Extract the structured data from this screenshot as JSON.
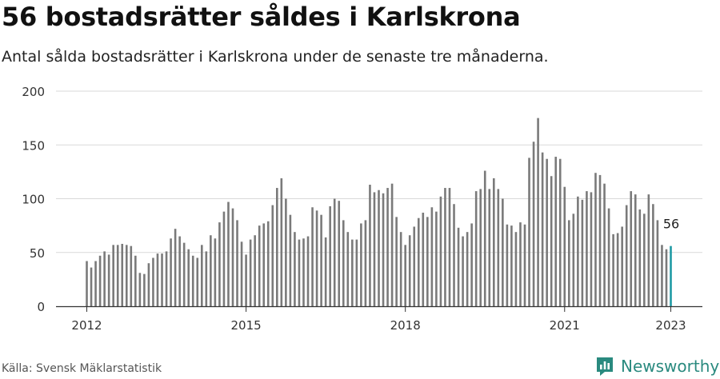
{
  "header": {
    "title": "56 bostadsrätter såldes i Karlskrona",
    "subtitle": "Antal sålda bostadsrätter i Karlskrona under de senaste tre månaderna."
  },
  "footer": {
    "source": "Källa: Svensk Mäklarstatistik",
    "brand": "Newsworthy"
  },
  "colors": {
    "bar": "#7a7a7a",
    "highlight": "#1f9aa5",
    "grid": "#d9d9d9",
    "axis": "#333333",
    "brand": "#2a8a7f"
  },
  "chart_data": {
    "type": "bar",
    "x_start": "2012-01",
    "y_ticks": [
      0,
      50,
      100,
      150,
      200
    ],
    "x_ticks": [
      "2012",
      "2015",
      "2018",
      "2021",
      "2023"
    ],
    "ylim": [
      0,
      200
    ],
    "grid": true,
    "highlight_label": "56",
    "values": [
      42,
      36,
      42,
      47,
      51,
      48,
      57,
      57,
      58,
      57,
      56,
      47,
      31,
      30,
      40,
      45,
      49,
      49,
      51,
      63,
      72,
      65,
      59,
      53,
      47,
      45,
      57,
      51,
      66,
      63,
      78,
      88,
      97,
      91,
      80,
      60,
      48,
      62,
      66,
      75,
      77,
      79,
      94,
      110,
      119,
      100,
      85,
      69,
      62,
      63,
      65,
      92,
      89,
      85,
      64,
      93,
      100,
      98,
      80,
      69,
      62,
      62,
      77,
      80,
      113,
      106,
      108,
      105,
      110,
      114,
      83,
      69,
      57,
      66,
      74,
      82,
      87,
      83,
      92,
      88,
      102,
      110,
      110,
      95,
      73,
      65,
      69,
      77,
      107,
      109,
      126,
      109,
      119,
      109,
      100,
      76,
      75,
      69,
      78,
      76,
      138,
      153,
      175,
      143,
      137,
      121,
      139,
      137,
      111,
      80,
      86,
      102,
      99,
      107,
      106,
      124,
      122,
      114,
      91,
      67,
      68,
      74,
      94,
      107,
      104,
      90,
      86,
      104,
      95,
      80,
      57,
      53,
      56
    ]
  }
}
